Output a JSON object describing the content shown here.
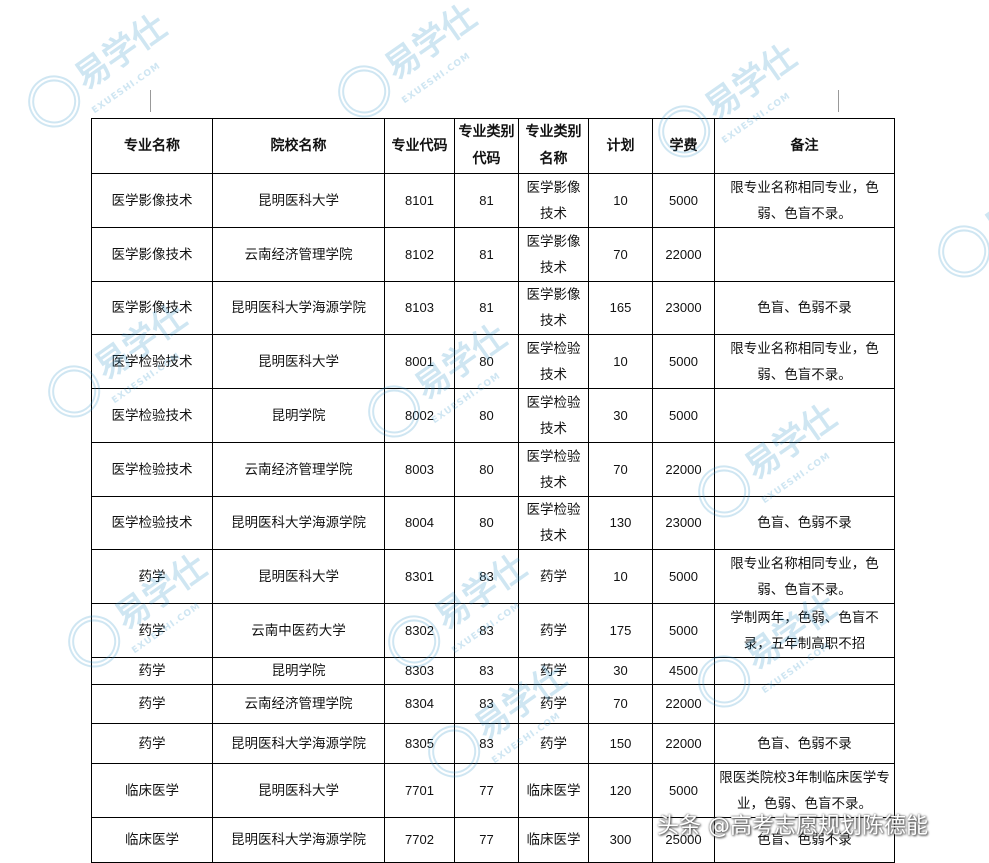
{
  "watermark": {
    "text": "易学仕",
    "sub": "EXUESHI.COM",
    "color": "#2a8fc8"
  },
  "headers": [
    "专业名称",
    "院校名称",
    "专业代码",
    "专业类别代码",
    "专业类别名称",
    "计划",
    "学费",
    "备注"
  ],
  "rows": [
    [
      "医学影像技术",
      "昆明医科大学",
      "8101",
      "81",
      "医学影像技术",
      "10",
      "5000",
      "限专业名称相同专业，色弱、色盲不录。"
    ],
    [
      "医学影像技术",
      "云南经济管理学院",
      "8102",
      "81",
      "医学影像技术",
      "70",
      "22000",
      ""
    ],
    [
      "医学影像技术",
      "昆明医科大学海源学院",
      "8103",
      "81",
      "医学影像技术",
      "165",
      "23000",
      "色盲、色弱不录"
    ],
    [
      "医学检验技术",
      "昆明医科大学",
      "8001",
      "80",
      "医学检验技术",
      "10",
      "5000",
      "限专业名称相同专业，色弱、色盲不录。"
    ],
    [
      "医学检验技术",
      "昆明学院",
      "8002",
      "80",
      "医学检验技术",
      "30",
      "5000",
      ""
    ],
    [
      "医学检验技术",
      "云南经济管理学院",
      "8003",
      "80",
      "医学检验技术",
      "70",
      "22000",
      ""
    ],
    [
      "医学检验技术",
      "昆明医科大学海源学院",
      "8004",
      "80",
      "医学检验技术",
      "130",
      "23000",
      "色盲、色弱不录"
    ],
    [
      "药学",
      "昆明医科大学",
      "8301",
      "83",
      "药学",
      "10",
      "5000",
      "限专业名称相同专业，色弱、色盲不录。"
    ],
    [
      "药学",
      "云南中医药大学",
      "8302",
      "83",
      "药学",
      "175",
      "5000",
      "学制两年，色弱、色盲不录，五年制高职不招"
    ],
    [
      "药学",
      "昆明学院",
      "8303",
      "83",
      "药学",
      "30",
      "4500",
      ""
    ],
    [
      "药学",
      "云南经济管理学院",
      "8304",
      "83",
      "药学",
      "70",
      "22000",
      ""
    ],
    [
      "药学",
      "昆明医科大学海源学院",
      "8305",
      "83",
      "药学",
      "150",
      "22000",
      "色盲、色弱不录"
    ],
    [
      "临床医学",
      "昆明医科大学",
      "7701",
      "77",
      "临床医学",
      "120",
      "5000",
      "限医类院校3年制临床医学专业，色弱、色盲不录。"
    ],
    [
      "临床医学",
      "昆明医科大学海源学院",
      "7702",
      "77",
      "临床医学",
      "300",
      "25000",
      "色盲、色弱不录"
    ]
  ],
  "footer": "头条 @高考志愿规划陈德能"
}
